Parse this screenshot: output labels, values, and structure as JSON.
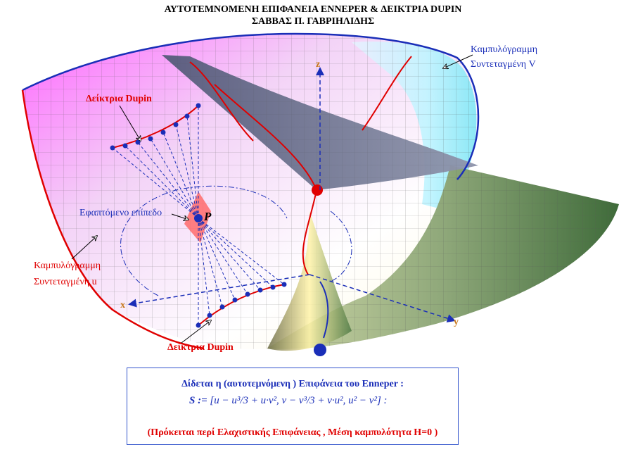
{
  "title_line1": "ΑΥΤΟΤΕΜΝΟΜΕΝΗ ΕΠΙΦΑΝΕΙΑ ENNEPER & ΔΕΙΚΤΡΙΑ DUPIN",
  "title_line2": "ΣΑΒΒΑΣ Π. ΓΑΒΡΙΗΛΙΔΗΣ",
  "labels": {
    "curve_v_line1": "Καμπυλόγραμμη",
    "curve_v_line2": "Συντεταγμένη V",
    "curve_u_line1": "Καμπυλόγραμμη",
    "curve_u_line2": "Συντεταγμένη u",
    "dupin_top": "Δείκτρια Dupin",
    "dupin_bottom": "Δείκτρια Dupin",
    "tangent_plane": "Εφαπτόμενο επίπεδο",
    "point": "P",
    "axis_x": "x",
    "axis_y": "y",
    "axis_z": "z"
  },
  "info_box": {
    "line1": "Δίδεται η (αυτοτεμνόμενη ) Επιφάνεια του Enneper :",
    "formula_lhs": "S :=",
    "formula_rhs": "[u − u³/3 + u·v², v − v³/3 + v·u², u² − v²] :",
    "line3": "(Πρόκειται περί Ελαχιστικής Επιφάνειας , Μέση καμπυλότητα H=0 )"
  },
  "colors": {
    "blue": "#1a2eb8",
    "red": "#e00000",
    "axis": "#c87a1e"
  }
}
